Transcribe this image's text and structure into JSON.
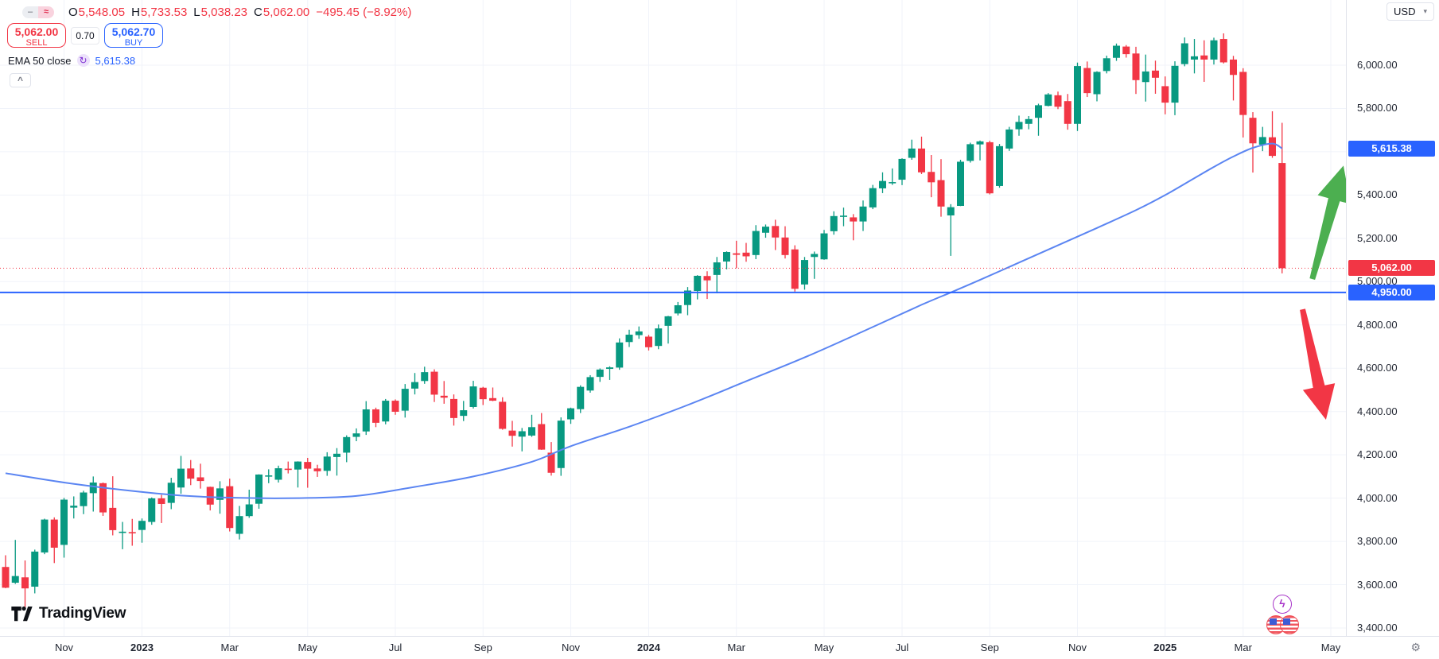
{
  "colors": {
    "up": "#089981",
    "down": "#f23645",
    "grid": "#f0f3fa",
    "ema_line": "#5b85f2",
    "hline_blue": "#2962ff",
    "badge_blue": "#2962ff",
    "badge_red": "#f23645",
    "arrow_green": "#4caf50",
    "arrow_red": "#f23645"
  },
  "legend": {
    "icons": {
      "dash": "–",
      "wave": "≈"
    },
    "ohlc": {
      "items": [
        {
          "k": "O",
          "v": "5,548.05"
        },
        {
          "k": "H",
          "v": "5,733.53"
        },
        {
          "k": "L",
          "v": "5,038.23"
        },
        {
          "k": "C",
          "v": "5,062.00"
        }
      ],
      "change": "−495.45 (−8.92%)"
    },
    "order_panel": {
      "sell_price": "5,062.00",
      "sell_label": "SELL",
      "spread": "0.70",
      "buy_price": "5,062.70",
      "buy_label": "BUY"
    },
    "indicator": {
      "name": "EMA 50 close",
      "value": "5,615.38",
      "refresh_glyph": "↻"
    },
    "collapse_glyph": "^"
  },
  "price_scale": {
    "currency": "USD",
    "caret": "▾",
    "labels": [
      6000,
      5800,
      5600,
      5400,
      5200,
      5000,
      4800,
      4600,
      4400,
      4200,
      4000,
      3800,
      3600,
      3400
    ],
    "badges": [
      {
        "value": 5615.38,
        "text": "5,615.38",
        "color": "#2962ff"
      },
      {
        "value": 5062.0,
        "text": "5,062.00",
        "color": "#f23645"
      },
      {
        "value": 4950.0,
        "text": "4,950.00",
        "color": "#2962ff"
      }
    ],
    "gear_glyph": "⚙"
  },
  "time_axis": {
    "ticks": [
      {
        "label": "Nov",
        "week": 6
      },
      {
        "label": "2023",
        "week": 14
      },
      {
        "label": "Mar",
        "week": 23
      },
      {
        "label": "May",
        "week": 31
      },
      {
        "label": "Jul",
        "week": 40
      },
      {
        "label": "Sep",
        "week": 49
      },
      {
        "label": "Nov",
        "week": 58
      },
      {
        "label": "2024",
        "week": 66
      },
      {
        "label": "Mar",
        "week": 75
      },
      {
        "label": "May",
        "week": 84
      },
      {
        "label": "Jul",
        "week": 92
      },
      {
        "label": "Sep",
        "week": 101
      },
      {
        "label": "Nov",
        "week": 110
      },
      {
        "label": "2025",
        "week": 119
      },
      {
        "label": "Mar",
        "week": 127
      },
      {
        "label": "May",
        "week": 136
      }
    ]
  },
  "logo": {
    "brand": "TradingView"
  },
  "event_markers": {
    "bolt_glyph": "ϟ"
  },
  "chart_data": {
    "type": "candlestick",
    "timeframe": "1W",
    "x_unit": "week_index",
    "ylim": [
      3364,
      6301
    ],
    "grid": true,
    "last_bar_ohlc": {
      "open": 5548.05,
      "high": 5733.53,
      "low": 5038.23,
      "close": 5062.0,
      "change": -495.45,
      "change_pct": -8.92
    },
    "candles": [
      [
        3682,
        3736,
        3584,
        3586
      ],
      [
        3609,
        3807,
        3604,
        3640
      ],
      [
        3634,
        3712,
        3492,
        3583
      ],
      [
        3591,
        3762,
        3560,
        3753
      ],
      [
        3749,
        3905,
        3741,
        3901
      ],
      [
        3901,
        3911,
        3700,
        3771
      ],
      [
        3784,
        4001,
        3725,
        3993
      ],
      [
        3956,
        4008,
        3906,
        3965
      ],
      [
        3963,
        4034,
        3926,
        4026
      ],
      [
        4023,
        4100,
        3938,
        4072
      ],
      [
        4069,
        4072,
        3918,
        3934
      ],
      [
        3955,
        4101,
        3828,
        3852
      ],
      [
        3842,
        3890,
        3764,
        3845
      ],
      [
        3843,
        3904,
        3780,
        3839
      ],
      [
        3853,
        3906,
        3794,
        3895
      ],
      [
        3890,
        4003,
        3877,
        3999
      ],
      [
        3999,
        4015,
        3885,
        3973
      ],
      [
        3978,
        4094,
        3949,
        4071
      ],
      [
        4049,
        4195,
        4020,
        4136
      ],
      [
        4137,
        4176,
        4060,
        4090
      ],
      [
        4096,
        4159,
        4044,
        4079
      ],
      [
        4052,
        4053,
        3943,
        3970
      ],
      [
        3992,
        4078,
        3928,
        4045
      ],
      [
        4055,
        4090,
        3846,
        3862
      ],
      [
        3835,
        3964,
        3809,
        3917
      ],
      [
        3917,
        4039,
        3909,
        3971
      ],
      [
        3974,
        4110,
        3951,
        4109
      ],
      [
        4103,
        4133,
        4069,
        4105
      ],
      [
        4085,
        4150,
        4072,
        4138
      ],
      [
        4136,
        4169,
        4114,
        4134
      ],
      [
        4132,
        4170,
        4049,
        4169
      ],
      [
        4167,
        4186,
        4048,
        4136
      ],
      [
        4137,
        4154,
        4098,
        4124
      ],
      [
        4126,
        4212,
        4103,
        4192
      ],
      [
        4190,
        4231,
        4104,
        4205
      ],
      [
        4210,
        4290,
        4166,
        4282
      ],
      [
        4283,
        4322,
        4263,
        4299
      ],
      [
        4308,
        4448,
        4292,
        4410
      ],
      [
        4410,
        4418,
        4328,
        4348
      ],
      [
        4354,
        4458,
        4341,
        4450
      ],
      [
        4450,
        4456,
        4385,
        4399
      ],
      [
        4404,
        4527,
        4372,
        4505
      ],
      [
        4506,
        4578,
        4479,
        4536
      ],
      [
        4541,
        4607,
        4528,
        4582
      ],
      [
        4584,
        4595,
        4444,
        4478
      ],
      [
        4473,
        4541,
        4436,
        4464
      ],
      [
        4458,
        4479,
        4335,
        4370
      ],
      [
        4380,
        4449,
        4356,
        4406
      ],
      [
        4421,
        4542,
        4414,
        4516
      ],
      [
        4510,
        4514,
        4430,
        4457
      ],
      [
        4462,
        4511,
        4448,
        4450
      ],
      [
        4445,
        4466,
        4316,
        4320
      ],
      [
        4312,
        4357,
        4238,
        4288
      ],
      [
        4284,
        4324,
        4216,
        4309
      ],
      [
        4289,
        4385,
        4283,
        4328
      ],
      [
        4342,
        4393,
        4223,
        4224
      ],
      [
        4210,
        4259,
        4104,
        4117
      ],
      [
        4139,
        4373,
        4103,
        4358
      ],
      [
        4364,
        4418,
        4343,
        4415
      ],
      [
        4411,
        4521,
        4393,
        4514
      ],
      [
        4497,
        4568,
        4487,
        4559
      ],
      [
        4560,
        4599,
        4537,
        4594
      ],
      [
        4597,
        4609,
        4546,
        4604
      ],
      [
        4603,
        4738,
        4593,
        4719
      ],
      [
        4721,
        4778,
        4698,
        4755
      ],
      [
        4753,
        4793,
        4736,
        4770
      ],
      [
        4746,
        4754,
        4682,
        4697
      ],
      [
        4703,
        4802,
        4688,
        4784
      ],
      [
        4796,
        4842,
        4714,
        4840
      ],
      [
        4853,
        4906,
        4844,
        4891
      ],
      [
        4892,
        4975,
        4845,
        4959
      ],
      [
        4957,
        5030,
        4918,
        5027
      ],
      [
        5026,
        5048,
        4920,
        5006
      ],
      [
        5031,
        5114,
        4946,
        5089
      ],
      [
        5093,
        5140,
        5057,
        5137
      ],
      [
        5131,
        5189,
        5062,
        5124
      ],
      [
        5134,
        5179,
        5092,
        5117
      ],
      [
        5123,
        5261,
        5104,
        5234
      ],
      [
        5226,
        5264,
        5203,
        5254
      ],
      [
        5257,
        5286,
        5146,
        5204
      ],
      [
        5204,
        5256,
        5107,
        5123
      ],
      [
        5149,
        5168,
        4954,
        4967
      ],
      [
        4987,
        5114,
        4963,
        5100
      ],
      [
        5114,
        5139,
        5013,
        5128
      ],
      [
        5103,
        5239,
        5101,
        5223
      ],
      [
        5233,
        5325,
        5217,
        5303
      ],
      [
        5305,
        5342,
        5256,
        5305
      ],
      [
        5297,
        5312,
        5191,
        5278
      ],
      [
        5278,
        5375,
        5234,
        5347
      ],
      [
        5343,
        5447,
        5335,
        5432
      ],
      [
        5431,
        5505,
        5409,
        5465
      ],
      [
        5459,
        5523,
        5447,
        5460
      ],
      [
        5471,
        5570,
        5446,
        5567
      ],
      [
        5572,
        5656,
        5563,
        5615
      ],
      [
        5615,
        5670,
        5497,
        5505
      ],
      [
        5507,
        5585,
        5390,
        5459
      ],
      [
        5469,
        5566,
        5300,
        5347
      ],
      [
        5306,
        5358,
        5119,
        5344
      ],
      [
        5350,
        5563,
        5349,
        5554
      ],
      [
        5558,
        5642,
        5550,
        5635
      ],
      [
        5634,
        5652,
        5560,
        5648
      ],
      [
        5644,
        5651,
        5403,
        5408
      ],
      [
        5442,
        5636,
        5434,
        5626
      ],
      [
        5615,
        5715,
        5604,
        5703
      ],
      [
        5704,
        5767,
        5674,
        5738
      ],
      [
        5729,
        5765,
        5704,
        5751
      ],
      [
        5757,
        5822,
        5674,
        5815
      ],
      [
        5812,
        5871,
        5810,
        5865
      ],
      [
        5861,
        5878,
        5797,
        5808
      ],
      [
        5834,
        5867,
        5702,
        5729
      ],
      [
        5729,
        6012,
        5696,
        5996
      ],
      [
        5987,
        6017,
        5853,
        5871
      ],
      [
        5866,
        5972,
        5833,
        5969
      ],
      [
        5973,
        6044,
        5962,
        6032
      ],
      [
        6034,
        6100,
        6020,
        6090
      ],
      [
        6086,
        6093,
        6035,
        6051
      ],
      [
        6054,
        6085,
        5867,
        5931
      ],
      [
        5922,
        6049,
        5832,
        5971
      ],
      [
        5975,
        6021,
        5868,
        5942
      ],
      [
        5903,
        5948,
        5773,
        5827
      ],
      [
        5827,
        6018,
        5769,
        5997
      ],
      [
        6005,
        6128,
        5995,
        6101
      ],
      [
        6026,
        6121,
        5962,
        6041
      ],
      [
        6045,
        6115,
        5923,
        6026
      ],
      [
        6026,
        6127,
        6003,
        6115
      ],
      [
        6121,
        6147,
        6008,
        6013
      ],
      [
        6026,
        6043,
        5837,
        5955
      ],
      [
        5969,
        5986,
        5666,
        5770
      ],
      [
        5757,
        5783,
        5504,
        5639
      ],
      [
        5633,
        5715,
        5603,
        5668
      ],
      [
        5667,
        5787,
        5572,
        5581
      ],
      [
        5548.05,
        5733.53,
        5038.23,
        5062
      ]
    ],
    "ema": {
      "name": "EMA 50",
      "color": "#5b85f2",
      "last_value": 5615.38,
      "points": [
        [
          0,
          4115
        ],
        [
          6,
          4072
        ],
        [
          12,
          4038
        ],
        [
          18,
          4012
        ],
        [
          24,
          4001
        ],
        [
          30,
          4000
        ],
        [
          36,
          4010
        ],
        [
          42,
          4052
        ],
        [
          48,
          4100
        ],
        [
          54,
          4168
        ],
        [
          58,
          4240
        ],
        [
          64,
          4330
        ],
        [
          70,
          4430
        ],
        [
          76,
          4540
        ],
        [
          82,
          4650
        ],
        [
          88,
          4770
        ],
        [
          94,
          4893
        ],
        [
          97,
          4950
        ],
        [
          100,
          5008
        ],
        [
          104,
          5088
        ],
        [
          108,
          5168
        ],
        [
          112,
          5248
        ],
        [
          116,
          5330
        ],
        [
          119,
          5400
        ],
        [
          122,
          5478
        ],
        [
          124,
          5530
        ],
        [
          126,
          5578
        ],
        [
          128,
          5618
        ],
        [
          130,
          5638
        ],
        [
          131,
          5615
        ]
      ]
    },
    "last_price_line": {
      "value": 5062.0,
      "style": "dotted",
      "color": "#f23645"
    },
    "horizontal_line": {
      "value": 4950.0,
      "color": "#2962ff"
    },
    "annotations": [
      {
        "type": "arrow",
        "direction": "up",
        "color": "#4caf50",
        "from_week": 134.1,
        "from_price": 5012,
        "to_week": 137.3,
        "to_price": 5536
      },
      {
        "type": "arrow",
        "direction": "down",
        "color": "#f23645",
        "from_week": 133.1,
        "from_price": 4872,
        "to_week": 135.5,
        "to_price": 4362
      }
    ]
  }
}
